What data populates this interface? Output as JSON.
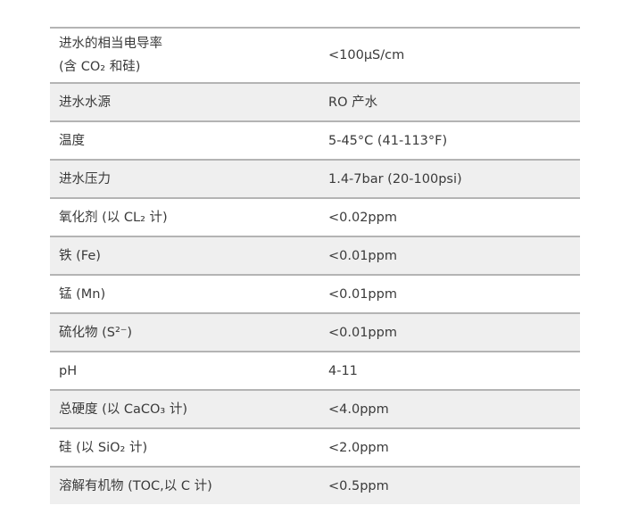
{
  "rows": [
    {
      "label": "进水的相当电导率",
      "label2": "(含 CO₂ 和硅)",
      "value": "<100μS/cm"
    },
    {
      "label": "进水水源",
      "value": "RO 产水"
    },
    {
      "label": "温度",
      "value": "5-45°C (41-113°F)"
    },
    {
      "label": "进水压力",
      "value": "1.4-7bar (20-100psi)"
    },
    {
      "label": "氧化剂 (以 CL₂ 计)",
      "value": "<0.02ppm"
    },
    {
      "label": "铁 (Fe)",
      "value": "<0.01ppm"
    },
    {
      "label": "锰 (Mn)",
      "value": "<0.01ppm"
    },
    {
      "label": "硫化物 (S²⁻)",
      "value": "<0.01ppm"
    },
    {
      "label": "pH",
      "value": "4-11"
    },
    {
      "label": "总硬度 (以 CaCO₃ 计)",
      "value": "<4.0ppm"
    },
    {
      "label": "硅 (以 SiO₂ 计)",
      "value": "<2.0ppm"
    },
    {
      "label": "溶解有机物 (TOC,以 C 计)",
      "value": "<0.5ppm"
    }
  ],
  "colors": {
    "alt_row": "#efefef",
    "rule": "#b4b4b4",
    "text": "#3a3a3a"
  }
}
